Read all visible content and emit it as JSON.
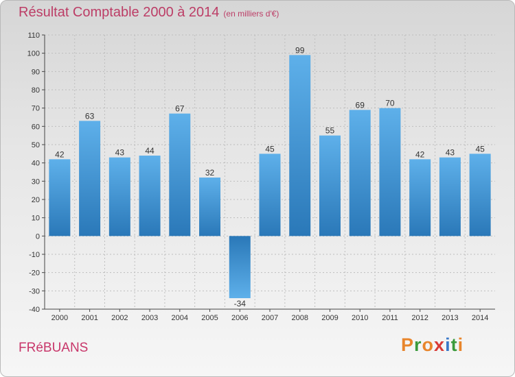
{
  "header": {
    "title": "Résultat Comptable 2000 à 2014",
    "subtitle": "(en milliers d'€)"
  },
  "footer": {
    "commune": "FRéBUANS",
    "logo_letters": [
      "P",
      "r",
      "o",
      "x",
      "i",
      "t",
      "i"
    ],
    "logo_colors": [
      "#e8852b",
      "#3a9a3c",
      "#e8852b",
      "#d83a36",
      "#3a78c8",
      "#3a9a3c",
      "#e8852b"
    ]
  },
  "chart_data": {
    "type": "bar",
    "title": "Résultat Comptable 2000 à 2014",
    "ylabel": "(en milliers d'€)",
    "xlabel": "",
    "categories": [
      "2000",
      "2001",
      "2002",
      "2003",
      "2004",
      "2005",
      "2006",
      "2007",
      "2008",
      "2009",
      "2010",
      "2011",
      "2012",
      "2013",
      "2014"
    ],
    "values": [
      42,
      63,
      43,
      44,
      67,
      32,
      -34,
      45,
      99,
      55,
      69,
      70,
      42,
      43,
      45
    ],
    "ylim": [
      -40,
      110
    ],
    "yticks": [
      -40,
      -30,
      -20,
      -10,
      0,
      10,
      20,
      30,
      40,
      50,
      60,
      70,
      80,
      90,
      100,
      110
    ],
    "grid": true,
    "colors": {
      "bar_light": "#5eb0ea",
      "bar_dark": "#2a78b8",
      "grid": "#bdbdbd",
      "axis": "#444444",
      "label": "#333333"
    }
  }
}
